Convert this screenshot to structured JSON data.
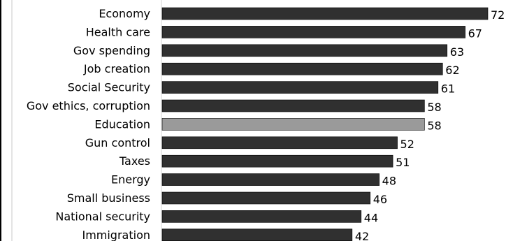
{
  "chart_data": {
    "type": "bar",
    "orientation": "horizontal",
    "categories": [
      "Economy",
      "Health care",
      "Gov spending",
      "Job creation",
      "Social Security",
      "Gov ethics, corruption",
      "Education",
      "Gun control",
      "Taxes",
      "Energy",
      "Small business",
      "National security",
      "Immigration"
    ],
    "values": [
      72,
      67,
      63,
      62,
      61,
      58,
      58,
      52,
      51,
      48,
      46,
      44,
      42
    ],
    "value_labels": [
      "72",
      "67",
      "63",
      "62",
      "61",
      "58",
      "58",
      "52",
      "51",
      "48",
      "46",
      "44",
      "42"
    ],
    "bar_colors": [
      "#303030",
      "#303030",
      "#303030",
      "#303030",
      "#303030",
      "#303030",
      "#9a9a9a",
      "#303030",
      "#303030",
      "#303030",
      "#303030",
      "#303030",
      "#303030"
    ],
    "highlight_category": "Education",
    "title": "",
    "xlabel": "",
    "ylabel": "",
    "xlim": [
      0,
      72
    ],
    "grid": false,
    "legend": false
  }
}
